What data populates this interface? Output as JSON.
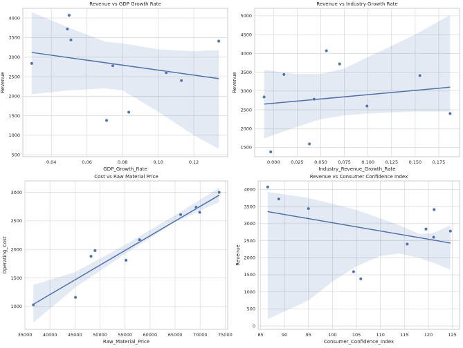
{
  "colors": {
    "series": "#4c72b0",
    "grid": "#dcdcdc",
    "spine": "#cccccc"
  },
  "chart_data": [
    {
      "type": "scatter",
      "title": "Revenue vs GDP Growth Rate",
      "xlabel": "GDP_Growth_Rate",
      "ylabel": "Revenue",
      "xlim": [
        0.024,
        0.139
      ],
      "ylim": [
        450,
        4250
      ],
      "grid": true,
      "xticks": [
        0.04,
        0.06,
        0.08,
        0.1,
        0.12
      ],
      "xtick_labels": [
        "0.04",
        "0.06",
        "0.08",
        "0.10",
        "0.12"
      ],
      "yticks": [
        500,
        1000,
        1500,
        2000,
        2500,
        3000,
        3500,
        4000
      ],
      "ytick_labels": [
        "500",
        "1000",
        "1500",
        "2000",
        "2500",
        "3000",
        "3500",
        "4000"
      ],
      "points": [
        [
          0.029,
          2840
        ],
        [
          0.05,
          4070
        ],
        [
          0.049,
          3720
        ],
        [
          0.051,
          3440
        ],
        [
          0.0745,
          2780
        ],
        [
          0.071,
          1380
        ],
        [
          0.0835,
          1590
        ],
        [
          0.1045,
          2600
        ],
        [
          0.113,
          2400
        ],
        [
          0.134,
          3410
        ]
      ],
      "regression_line": [
        [
          0.029,
          3120
        ],
        [
          0.134,
          2450
        ]
      ],
      "confidence_band": {
        "x": [
          0.029,
          0.05,
          0.07,
          0.08,
          0.1,
          0.12,
          0.134
        ],
        "upper": [
          4150,
          3750,
          3400,
          3350,
          3200,
          3150,
          3180
        ],
        "lower": [
          2050,
          2150,
          2200,
          2150,
          1600,
          1000,
          650
        ]
      }
    },
    {
      "type": "scatter",
      "title": "Revenue vs Industry Growth Rate",
      "xlabel": "Industry_Revenue_Growth_Rate",
      "ylabel": "Revenue",
      "xlim": [
        -0.02,
        0.197
      ],
      "ylim": [
        1250,
        5200
      ],
      "grid": true,
      "xticks": [
        0.0,
        0.025,
        0.05,
        0.075,
        0.1,
        0.125,
        0.15,
        0.175
      ],
      "xtick_labels": [
        "0.000",
        "0.025",
        "0.050",
        "0.075",
        "0.100",
        "0.125",
        "0.150",
        "0.175"
      ],
      "yticks": [
        1500,
        2000,
        2500,
        3000,
        3500,
        4000,
        4500,
        5000
      ],
      "ytick_labels": [
        "1500",
        "2000",
        "2500",
        "3000",
        "3500",
        "4000",
        "4500",
        "5000"
      ],
      "points": [
        [
          -0.01,
          2840
        ],
        [
          -0.003,
          1380
        ],
        [
          0.011,
          3440
        ],
        [
          0.038,
          1590
        ],
        [
          0.043,
          2780
        ],
        [
          0.056,
          4070
        ],
        [
          0.07,
          3720
        ],
        [
          0.099,
          2600
        ],
        [
          0.155,
          3410
        ],
        [
          0.187,
          2400
        ]
      ],
      "regression_line": [
        [
          -0.01,
          2650
        ],
        [
          0.187,
          3100
        ]
      ],
      "confidence_band": {
        "x": [
          -0.01,
          0.025,
          0.05,
          0.075,
          0.1,
          0.15,
          0.187
        ],
        "upper": [
          3560,
          3450,
          3450,
          3600,
          3900,
          4500,
          5020
        ],
        "lower": [
          1740,
          2050,
          2250,
          2350,
          2400,
          2450,
          2450
        ]
      }
    },
    {
      "type": "scatter",
      "title": "Cost vs Raw Material Price",
      "xlabel": "Raw_Material_Price",
      "ylabel": "Operating_Cost",
      "xlim": [
        35000,
        75500
      ],
      "ylim": [
        600,
        3200
      ],
      "grid": true,
      "xticks": [
        35000,
        40000,
        45000,
        50000,
        55000,
        60000,
        65000,
        70000,
        75000
      ],
      "xtick_labels": [
        "35000",
        "40000",
        "45000",
        "50000",
        "55000",
        "60000",
        "65000",
        "70000",
        "75000"
      ],
      "yticks": [
        1000,
        1500,
        2000,
        2500,
        3000
      ],
      "ytick_labels": [
        "1000",
        "1500",
        "2000",
        "2500",
        "3000"
      ],
      "points": [
        [
          36700,
          1030
        ],
        [
          45100,
          1160
        ],
        [
          48200,
          1880
        ],
        [
          49000,
          1980
        ],
        [
          55200,
          1810
        ],
        [
          57900,
          2170
        ],
        [
          66100,
          2610
        ],
        [
          69200,
          2740
        ],
        [
          69900,
          2650
        ],
        [
          73800,
          3000
        ]
      ],
      "regression_line": [
        [
          36700,
          1040
        ],
        [
          73800,
          2950
        ]
      ],
      "confidence_band": {
        "x": [
          36700,
          45000,
          55000,
          65000,
          73800
        ],
        "upper": [
          1380,
          1600,
          2080,
          2600,
          3080
        ],
        "lower": [
          720,
          1330,
          1920,
          2480,
          2830
        ]
      }
    },
    {
      "type": "scatter",
      "title": "Revenue vs Consumer Confidence Index",
      "xlabel": "Consumer_Confidence_Index",
      "ylabel": "Revenue",
      "xlim": [
        84.5,
        126.5
      ],
      "ylim": [
        -100,
        4250
      ],
      "grid": true,
      "xticks": [
        85,
        90,
        95,
        100,
        105,
        110,
        115,
        120,
        125
      ],
      "xtick_labels": [
        "85",
        "90",
        "95",
        "100",
        "105",
        "110",
        "115",
        "120",
        "125"
      ],
      "yticks": [
        0,
        500,
        1000,
        1500,
        2000,
        2500,
        3000,
        3500,
        4000
      ],
      "ytick_labels": [
        "0",
        "500",
        "1000",
        "1500",
        "2000",
        "2500",
        "3000",
        "3500",
        "4000"
      ],
      "points": [
        [
          86.5,
          4070
        ],
        [
          88.8,
          3720
        ],
        [
          95,
          3440
        ],
        [
          104.4,
          1590
        ],
        [
          105.9,
          1380
        ],
        [
          115.6,
          2400
        ],
        [
          119.5,
          2840
        ],
        [
          121.1,
          2600
        ],
        [
          121.2,
          3410
        ],
        [
          124.6,
          2780
        ]
      ],
      "regression_line": [
        [
          86.5,
          3350
        ],
        [
          124.6,
          2430
        ]
      ],
      "confidence_band": {
        "x": [
          86.5,
          95,
          100,
          105,
          110,
          114,
          118,
          121,
          124.6
        ],
        "upper": [
          3930,
          3750,
          3580,
          3400,
          3150,
          2950,
          2700,
          2720,
          2950
        ],
        "lower": [
          200,
          750,
          1300,
          1750,
          2050,
          2120,
          2000,
          1850,
          1650
        ]
      }
    }
  ]
}
